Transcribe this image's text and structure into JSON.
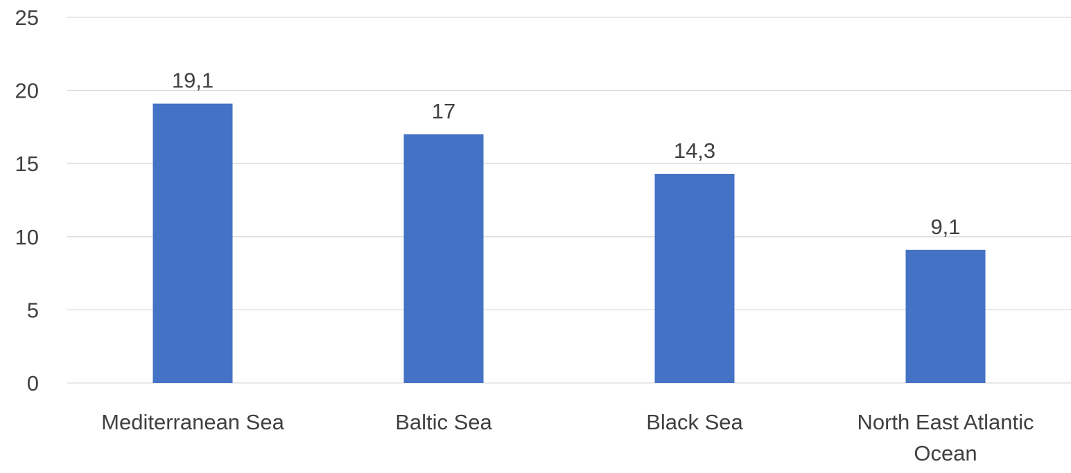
{
  "chart_data": {
    "type": "bar",
    "categories": [
      "Mediterranean Sea",
      "Baltic Sea",
      "Black Sea",
      "North East Atlantic Ocean"
    ],
    "values": [
      19.1,
      17,
      14.3,
      9.1
    ],
    "value_labels": [
      "19,1",
      "17",
      "14,3",
      "9,1"
    ],
    "y_ticks": [
      "0",
      "5",
      "10",
      "15",
      "20",
      "25"
    ],
    "ylim": [
      0,
      25
    ],
    "title": "",
    "xlabel": "",
    "ylabel": "",
    "grid": true,
    "legend": "none",
    "bar_color": "#4472C4",
    "grid_color": "#D9D9D9",
    "text_color": "#404040"
  }
}
